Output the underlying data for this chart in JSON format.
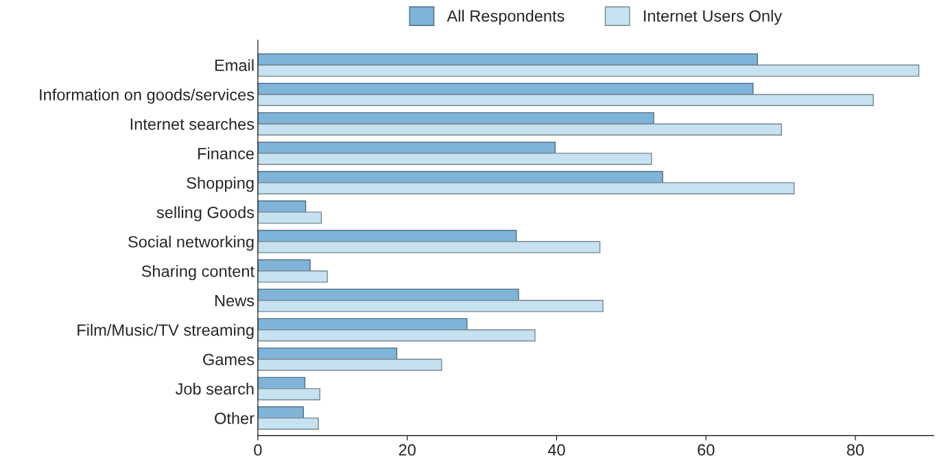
{
  "chart_data": {
    "type": "bar",
    "orientation": "horizontal",
    "categories": [
      "Email",
      "Information on goods/services",
      "Internet searches",
      "Finance",
      "Shopping",
      "selling Goods",
      "Social networking",
      "Sharing content",
      "News",
      "Film/Music/TV streaming",
      "Games",
      "Job search",
      "Other"
    ],
    "series": [
      {
        "name": "All Respondents",
        "color": "#7fb4d8",
        "values": [
          66.9,
          66.3,
          53.0,
          39.8,
          54.2,
          6.4,
          34.6,
          7.0,
          34.9,
          28.0,
          18.6,
          6.3,
          6.1
        ]
      },
      {
        "name": "Internet Users Only",
        "color": "#c6e1f0",
        "values": [
          88.5,
          82.4,
          70.1,
          52.7,
          71.8,
          8.5,
          45.8,
          9.3,
          46.2,
          37.1,
          24.6,
          8.3,
          8.1
        ]
      }
    ],
    "xlim": [
      0,
      90.5
    ],
    "xticks": [
      0,
      20,
      40,
      60,
      80
    ],
    "grid": false,
    "legend": "top"
  }
}
